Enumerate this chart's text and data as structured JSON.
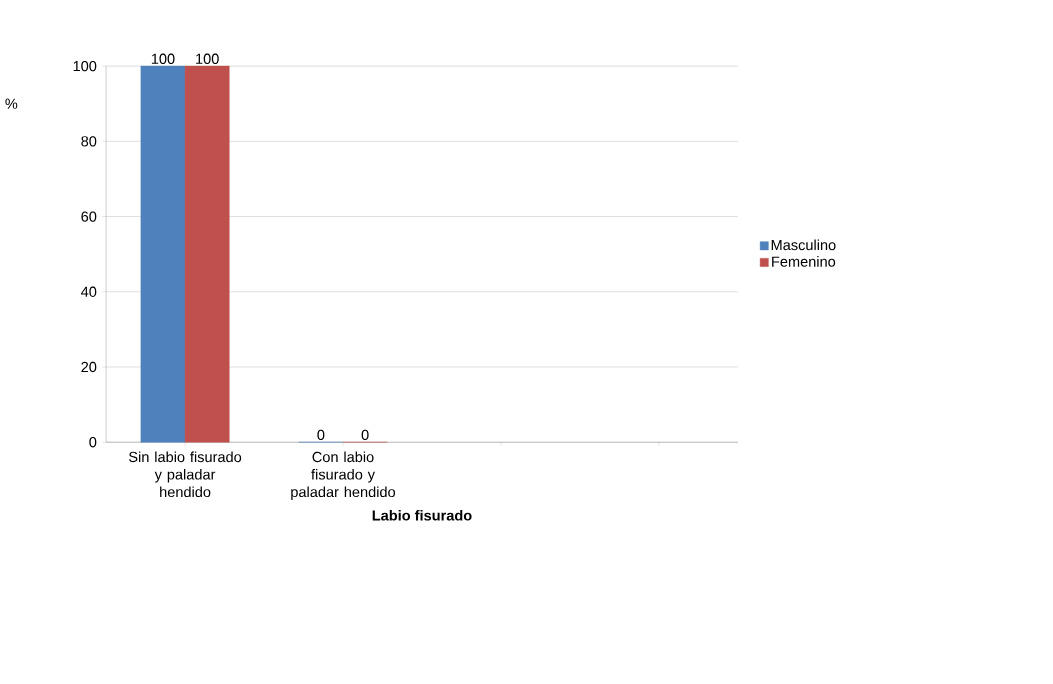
{
  "chart_data": {
    "type": "bar",
    "xlabel": "Labio fisurado",
    "ylabel": "%",
    "categories": [
      "Sin labio fisurado y paladar hendido",
      "Con labio fisurado y paladar hendido",
      null,
      null
    ],
    "series": [
      {
        "name": "Masculino",
        "color": "#4f81bd",
        "values": [
          100,
          0,
          null,
          null
        ]
      },
      {
        "name": "Femenino",
        "color": "#c0504d",
        "values": [
          100,
          0,
          null,
          null
        ]
      }
    ],
    "ylim": [
      0,
      100
    ],
    "yticks": [
      0,
      20,
      40,
      60,
      80,
      100
    ],
    "grid": "y",
    "legend": "right",
    "data_labels": true
  }
}
